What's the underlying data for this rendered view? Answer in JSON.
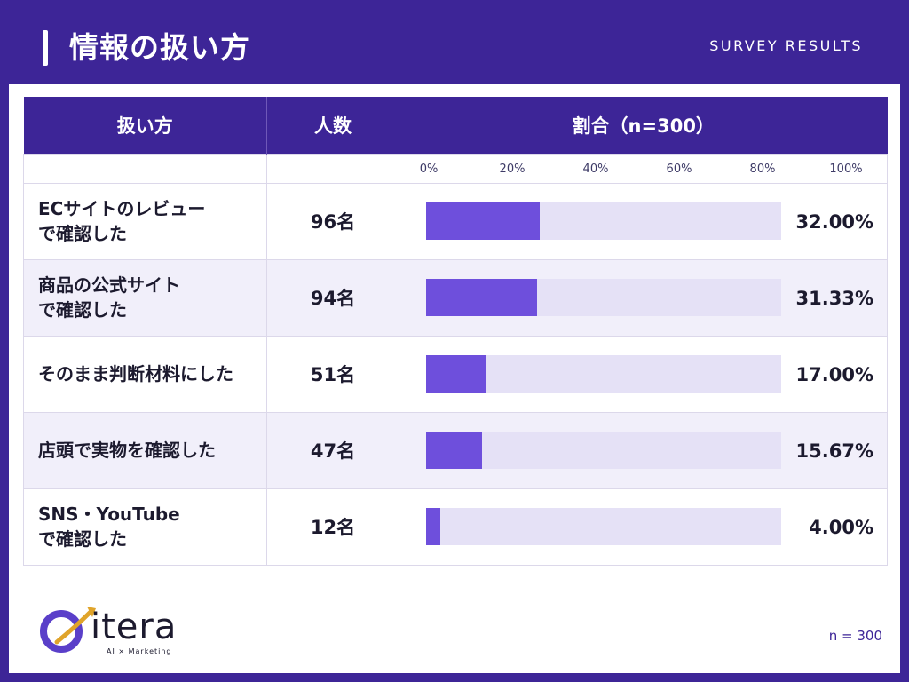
{
  "header": {
    "title": "情報の扱い方",
    "subtitle": "SURVEY RESULTS"
  },
  "table": {
    "headers": [
      "扱い方",
      "人数",
      "割合（n=300）"
    ]
  },
  "chart_data": {
    "type": "bar",
    "title": "情報の扱い方",
    "categories": [
      "ECサイトのレビュー\nで確認した",
      "商品の公式サイト\nで確認した",
      "そのまま判断材料にした",
      "店頭で実物を確認した",
      "SNS・YouTube\nで確認した"
    ],
    "counts": [
      "96名",
      "94名",
      "51名",
      "47名",
      "12名"
    ],
    "values": [
      32.0,
      31.33,
      17.0,
      15.67,
      4.0
    ],
    "value_labels": [
      "32.00%",
      "31.33%",
      "17.00%",
      "15.67%",
      "4.00%"
    ],
    "xlim": [
      0,
      100
    ],
    "x_ticks": [
      "0%",
      "20%",
      "40%",
      "60%",
      "80%",
      "100%"
    ],
    "orientation": "horizontal",
    "bar_color": "#6e4fdc",
    "track_color": "#e5e1f6"
  },
  "footer": {
    "logo_text": "itera",
    "logo_sub": "AI × Marketing",
    "n_note": "n = 300"
  },
  "colors": {
    "brand": "#3d2597",
    "accent": "#6e4fdc"
  }
}
